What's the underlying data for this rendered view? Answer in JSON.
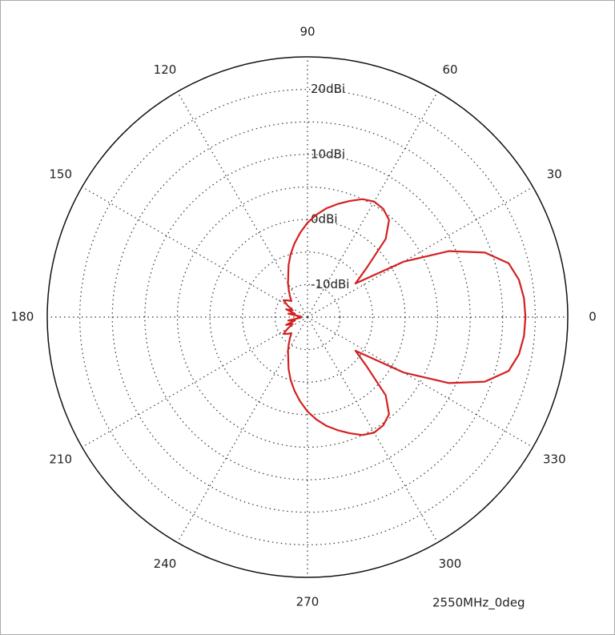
{
  "chart_data": {
    "type": "polar",
    "annotation": "2550MHz_0deg",
    "theta": [
      0,
      5,
      10,
      15,
      20,
      25,
      30,
      35,
      40,
      45,
      50,
      55,
      60,
      65,
      70,
      75,
      80,
      85,
      90,
      95,
      100,
      105,
      110,
      115,
      120,
      125,
      130,
      135,
      140,
      145,
      150,
      155,
      160,
      165,
      170,
      175,
      180,
      185,
      190,
      195,
      200,
      205,
      210,
      215,
      220,
      225,
      230,
      235,
      240,
      245,
      250,
      255,
      260,
      265,
      270,
      275,
      280,
      285,
      290,
      295,
      300,
      305,
      310,
      315,
      320,
      325,
      330,
      335,
      340,
      345,
      350,
      355
    ],
    "r": [
      18.5,
      18.4,
      18,
      17,
      14,
      9,
      2,
      -6,
      -3,
      2,
      4.5,
      5.3,
      5.5,
      5,
      4,
      3,
      2,
      0.8,
      -0.5,
      -2,
      -3.5,
      -5,
      -6.5,
      -8,
      -9,
      -10,
      -10.8,
      -11.5,
      -11,
      -10.5,
      -11.5,
      -12.5,
      -11.5,
      -13,
      -12,
      -14,
      -13.5,
      -14,
      -12,
      -13,
      -11.5,
      -12.5,
      -11.5,
      -10.5,
      -11,
      -11.5,
      -10.8,
      -10,
      -9,
      -8,
      -6.5,
      -5,
      -3.5,
      -2,
      -0.5,
      0.8,
      2,
      3,
      4,
      5,
      5.5,
      5.3,
      4.5,
      2,
      -3,
      -6,
      2,
      9,
      14,
      17,
      18,
      18.4
    ],
    "color": "#d42020",
    "rlim": [
      -15,
      25
    ],
    "rticks": [
      {
        "value": -10,
        "label": "-10dBi"
      },
      {
        "value": 0,
        "label": "0dBi"
      },
      {
        "value": 10,
        "label": "10dBi"
      },
      {
        "value": 20,
        "label": "20dBi"
      }
    ],
    "rminor": [
      -5,
      5,
      15
    ],
    "thetaticks": [
      0,
      30,
      60,
      90,
      120,
      150,
      180,
      210,
      240,
      270,
      300,
      330
    ],
    "grid": true
  }
}
